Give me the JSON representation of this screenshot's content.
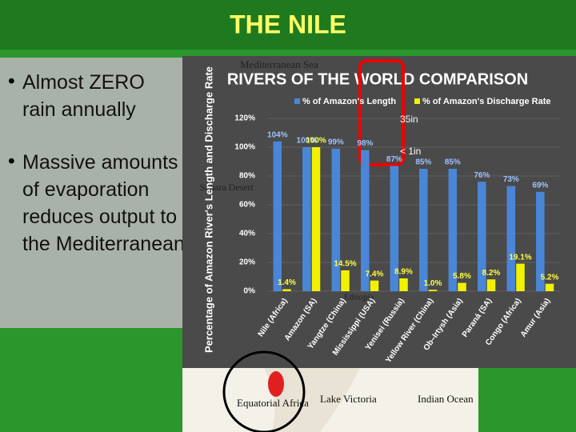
{
  "slide": {
    "title": "THE NILE",
    "bullets": [
      "Almost ZERO rain annually",
      "Massive amounts of evaporation reduces output to the Mediterranean"
    ],
    "map_labels": [
      "Mediterranean Sea",
      "Sahara Desert",
      "Ethiopia",
      "Equatorial Africa",
      "Lake Victoria",
      "Indian Ocean"
    ],
    "annotations": [
      "35in",
      "< 1in"
    ]
  },
  "chart_data": {
    "type": "bar",
    "title": "RIVERS OF THE WORLD COMPARISON",
    "ylabel": "Percentage of Amazon River's Length and Discharge Rate",
    "categories": [
      "Nile (Africa)",
      "Amazon (SA)",
      "Yangtze (China)",
      "Mississippi (USA)",
      "Yenisei (Russia)",
      "Yellow River (China)",
      "Ob–Irtysh (Asia)",
      "Paraná (SA)",
      "Congo (Africa)",
      "Amur (Asia)"
    ],
    "series": [
      {
        "name": "% of Amazon's Length",
        "color": "#4a86d8",
        "values": [
          104,
          100,
          99,
          98,
          87,
          85,
          85,
          76,
          73,
          69
        ],
        "value_labels": [
          "104%",
          "100%",
          "99%",
          "98%",
          "87%",
          "85%",
          "85%",
          "76%",
          "73%",
          "69%"
        ]
      },
      {
        "name": "% of Amazon's Discharge Rate",
        "color": "#f2f200",
        "values": [
          1.4,
          100,
          14.5,
          7.4,
          8.9,
          1.0,
          5.8,
          8.2,
          19.1,
          5.2
        ],
        "value_labels": [
          "1.4%",
          "100%",
          "14.5%",
          "7.4%",
          "8.9%",
          "1.0%",
          "5.8%",
          "8.2%",
          "19.1%",
          "5.2%"
        ]
      }
    ],
    "ylim": [
      0,
      120
    ],
    "yticks": [
      {
        "value": 0,
        "label": "0%"
      },
      {
        "value": 20,
        "label": "20%"
      },
      {
        "value": 40,
        "label": "40%"
      },
      {
        "value": 60,
        "label": "60%"
      },
      {
        "value": 80,
        "label": "80%"
      },
      {
        "value": 100,
        "label": "100%"
      },
      {
        "value": 120,
        "label": "120%"
      }
    ],
    "grid": true,
    "legend": "top"
  }
}
